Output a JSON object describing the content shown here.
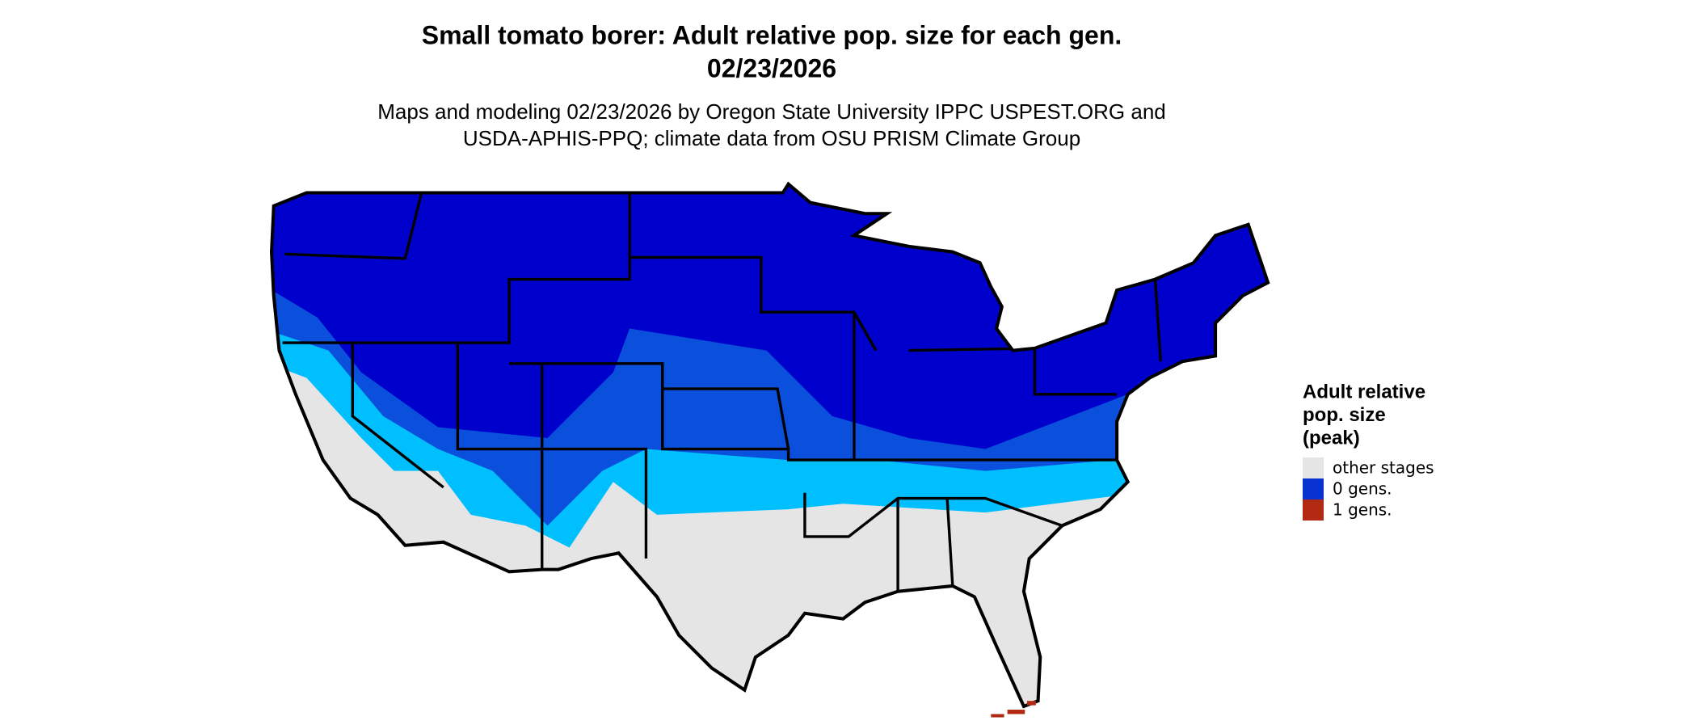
{
  "title": [
    "Small tomato borer: Adult relative pop. size for each gen.",
    "02/23/2026"
  ],
  "subtitle": [
    "Maps and modeling 02/23/2026 by Oregon State University IPPC USPEST.ORG and",
    "USDA-APHIS-PPQ; climate data from OSU PRISM Climate Group"
  ],
  "legend": {
    "title": [
      "Adult relative",
      "pop. size",
      "(peak)"
    ],
    "items": [
      {
        "label": "other stages",
        "color": "#e5e5e5"
      },
      {
        "label": "0 gens.",
        "color": "#0a32d2"
      },
      {
        "label": "1 gens.",
        "color": "#b22a14"
      }
    ]
  }
}
